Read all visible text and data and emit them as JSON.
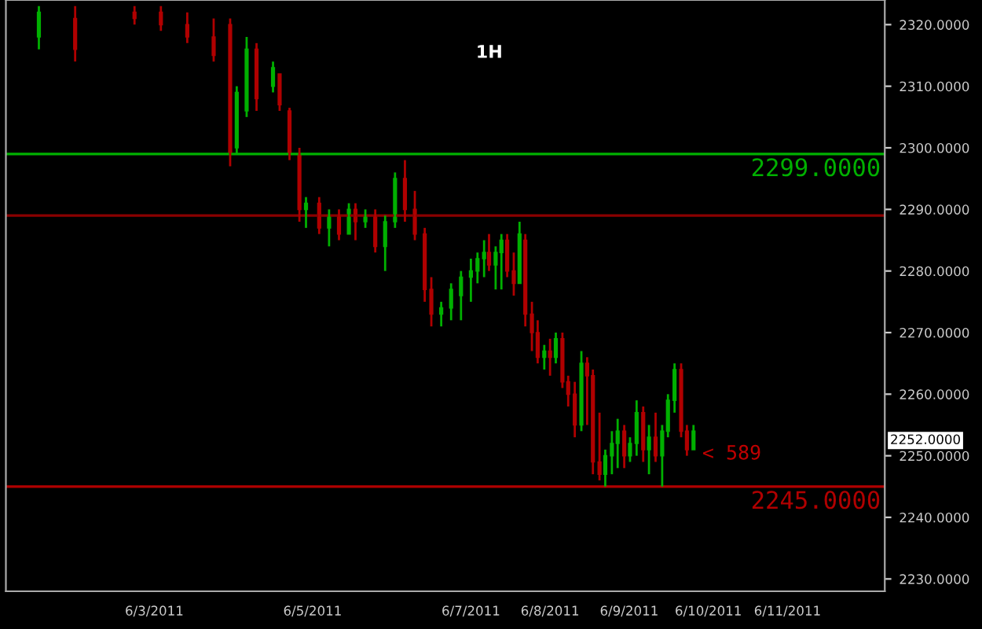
{
  "chart_data": {
    "type": "candlestick",
    "title": "1H",
    "x": [
      "2011-06-01T13:00",
      "2011-06-02T00:00",
      "2011-06-02T18:00",
      "2011-06-03T02:00",
      "2011-06-03T10:00",
      "2011-06-03T18:00",
      "2011-06-03T23:00",
      "2011-06-04T01:00",
      "2011-06-04T04:00",
      "2011-06-04T07:00",
      "2011-06-04T12:00",
      "2011-06-04T14:00",
      "2011-06-04T17:00",
      "2011-06-04T20:00",
      "2011-06-04T22:00",
      "2011-06-05T02:00",
      "2011-06-05T05:00",
      "2011-06-05T08:00",
      "2011-06-05T11:00",
      "2011-06-05T13:00",
      "2011-06-05T16:00",
      "2011-06-05T19:00",
      "2011-06-05T22:00",
      "2011-06-06T01:00",
      "2011-06-06T04:00",
      "2011-06-06T07:00",
      "2011-06-06T10:00",
      "2011-06-06T12:00",
      "2011-06-06T15:00",
      "2011-06-06T18:00",
      "2011-06-06T21:00",
      "2011-06-07T00:00",
      "2011-06-07T02:00",
      "2011-06-07T04:00",
      "2011-06-07T05:30",
      "2011-06-07T07:30",
      "2011-06-07T09:15",
      "2011-06-07T11:00",
      "2011-06-07T13:00",
      "2011-06-07T14:45",
      "2011-06-07T16:30",
      "2011-06-07T18:30",
      "2011-06-07T20:15",
      "2011-06-07T22:15",
      "2011-06-08T00:00",
      "2011-06-08T01:45",
      "2011-06-08T03:45",
      "2011-06-08T05:30",
      "2011-06-08T07:30",
      "2011-06-08T09:30",
      "2011-06-08T11:15",
      "2011-06-08T13:00",
      "2011-06-08T15:00",
      "2011-06-08T16:45",
      "2011-06-08T18:45",
      "2011-06-08T20:30",
      "2011-06-08T22:30",
      "2011-06-09T00:15",
      "2011-06-09T02:15",
      "2011-06-09T04:15",
      "2011-06-09T06:00",
      "2011-06-09T08:00",
      "2011-06-09T10:00",
      "2011-06-09T11:45",
      "2011-06-09T13:45",
      "2011-06-09T15:45",
      "2011-06-09T17:30",
      "2011-06-09T19:30"
    ],
    "ohlc": [
      [
        2318,
        2323,
        2316,
        2322
      ],
      [
        2321,
        2323,
        2314,
        2316
      ],
      [
        2322,
        2323,
        2320,
        2321
      ],
      [
        2322,
        2323,
        2319,
        2320
      ],
      [
        2320,
        2322,
        2317,
        2318
      ],
      [
        2318,
        2321,
        2314,
        2315
      ],
      [
        2320,
        2321,
        2297,
        2299
      ],
      [
        2300,
        2310,
        2299,
        2309
      ],
      [
        2306,
        2318,
        2305,
        2316
      ],
      [
        2316,
        2317,
        2306,
        2308
      ],
      [
        2310,
        2314,
        2309,
        2313
      ],
      [
        2312,
        2312,
        2306,
        2307
      ],
      [
        2306,
        2306.5,
        2298,
        2299
      ],
      [
        2299,
        2300,
        2288,
        2290
      ],
      [
        2290,
        2292,
        2287,
        2291
      ],
      [
        2291,
        2292,
        2286,
        2287
      ],
      [
        2287,
        2290,
        2284,
        2289
      ],
      [
        2289,
        2290,
        2285,
        2286
      ],
      [
        2286,
        2291,
        2286,
        2290
      ],
      [
        2290,
        2291,
        2285,
        2288
      ],
      [
        2288,
        2290,
        2287,
        2289
      ],
      [
        2289,
        2290,
        2283,
        2284
      ],
      [
        2284,
        2289,
        2280,
        2288
      ],
      [
        2288,
        2296,
        2287,
        2295
      ],
      [
        2295,
        2298,
        2288,
        2290
      ],
      [
        2290,
        2293,
        2285,
        2286
      ],
      [
        2286,
        2287,
        2275,
        2277
      ],
      [
        2277,
        2279,
        2271,
        2273
      ],
      [
        2273,
        2275,
        2271,
        2274
      ],
      [
        2274,
        2278,
        2272,
        2277
      ],
      [
        2276,
        2280,
        2272,
        2279
      ],
      [
        2279,
        2282,
        2275,
        2280
      ],
      [
        2280,
        2283,
        2278,
        2282
      ],
      [
        2282,
        2285,
        2279,
        2283
      ],
      [
        2283,
        2286,
        2280,
        2281
      ],
      [
        2281,
        2284,
        2277,
        2283
      ],
      [
        2283,
        2286,
        2277,
        2285
      ],
      [
        2285,
        2286,
        2279,
        2280
      ],
      [
        2280,
        2283,
        2276,
        2278
      ],
      [
        2278,
        2288,
        2278,
        2286
      ],
      [
        2285,
        2286,
        2271,
        2273
      ],
      [
        2273,
        2275,
        2267,
        2270
      ],
      [
        2270,
        2272,
        2265,
        2266
      ],
      [
        2266,
        2268,
        2264,
        2267
      ],
      [
        2267,
        2269,
        2263,
        2266
      ],
      [
        2266,
        2270,
        2265,
        2269
      ],
      [
        2269,
        2270,
        2261,
        2262
      ],
      [
        2262,
        2263,
        2258,
        2260
      ],
      [
        2260,
        2262,
        2253,
        2255
      ],
      [
        2255,
        2267,
        2254,
        2265
      ],
      [
        2265,
        2266,
        2255,
        2263
      ],
      [
        2263,
        2264,
        2247,
        2249
      ],
      [
        2249,
        2257,
        2246,
        2247
      ],
      [
        2247,
        2251,
        2245,
        2250
      ],
      [
        2250,
        2254,
        2247,
        2252
      ],
      [
        2252,
        2256,
        2248,
        2254
      ],
      [
        2254,
        2255,
        2248,
        2250
      ],
      [
        2250,
        2253,
        2249,
        2252
      ],
      [
        2252,
        2259,
        2250,
        2257
      ],
      [
        2257,
        2258,
        2249,
        2251
      ],
      [
        2251,
        2255,
        2247,
        2253
      ],
      [
        2253,
        2257,
        2249,
        2250
      ],
      [
        2250,
        2255,
        2245,
        2254
      ],
      [
        2254,
        2260,
        2253,
        2259
      ],
      [
        2259,
        2265,
        2257,
        2264
      ],
      [
        2264,
        2265,
        2253,
        2254
      ],
      [
        2254,
        2255,
        2250,
        2251
      ],
      [
        2251,
        2255,
        2251,
        2254
      ]
    ],
    "colors": [
      "#00b000",
      "#b00000",
      "#b00000",
      "#b00000",
      "#b00000",
      "#b00000",
      "#b00000",
      "#00b000",
      "#00b000",
      "#b00000",
      "#00b000",
      "#b00000",
      "#b00000",
      "#b00000",
      "#00b000",
      "#b00000",
      "#00b000",
      "#b00000",
      "#00b000",
      "#b00000",
      "#00b000",
      "#b00000",
      "#00b000",
      "#00b000",
      "#b00000",
      "#b00000",
      "#b00000",
      "#b00000",
      "#00b000",
      "#00b000",
      "#00b000",
      "#00b000",
      "#00b000",
      "#00b000",
      "#b00000",
      "#00b000",
      "#00b000",
      "#b00000",
      "#b00000",
      "#00b000",
      "#b00000",
      "#b00000",
      "#b00000",
      "#00b000",
      "#b00000",
      "#00b000",
      "#b00000",
      "#b00000",
      "#b00000",
      "#00b000",
      "#b00000",
      "#b00000",
      "#b00000",
      "#00b000",
      "#00b000",
      "#00b000",
      "#b00000",
      "#00b000",
      "#00b000",
      "#b00000",
      "#00b000",
      "#b00000",
      "#00b000",
      "#00b000",
      "#00b000",
      "#b00000",
      "#b00000",
      "#00b000"
    ],
    "xlim": [
      "2011-06-01T03:00",
      "2011-06-12T05:30"
    ],
    "xticks": [
      {
        "value": "2011-06-03",
        "label": "6/3/2011"
      },
      {
        "value": "2011-06-05",
        "label": "6/5/2011"
      },
      {
        "value": "2011-06-07",
        "label": "6/7/2011"
      },
      {
        "value": "2011-06-08",
        "label": "6/8/2011"
      },
      {
        "value": "2011-06-09",
        "label": "6/9/2011"
      },
      {
        "value": "2011-06-10",
        "label": "6/10/2011"
      },
      {
        "value": "2011-06-11",
        "label": "6/11/2011"
      }
    ],
    "ylim": [
      2228,
      2324
    ],
    "yticks": [
      {
        "value": 2230,
        "label": "2230.0000"
      },
      {
        "value": 2240,
        "label": "2240.0000"
      },
      {
        "value": 2250,
        "label": "2250.0000"
      },
      {
        "value": 2260,
        "label": "2260.0000"
      },
      {
        "value": 2270,
        "label": "2270.0000"
      },
      {
        "value": 2280,
        "label": "2280.0000"
      },
      {
        "value": 2290,
        "label": "2290.0000"
      },
      {
        "value": 2300,
        "label": "2300.0000"
      },
      {
        "value": 2310,
        "label": "2310.0000"
      },
      {
        "value": 2320,
        "label": "2320.0000"
      }
    ],
    "ref_lines": [
      {
        "axis": "y",
        "value": 2299,
        "label": "2299.0000",
        "color": "#00b000"
      },
      {
        "axis": "y",
        "value": 2289,
        "label": null,
        "color": "#8b0000"
      },
      {
        "axis": "y",
        "value": 2245,
        "label": "2245.0000",
        "color": "#b00000"
      }
    ],
    "annotations": [
      {
        "text": "< 589",
        "x": "2011-06-09T19:30",
        "y": 2251
      },
      "2252.0000"
    ],
    "grid": false
  }
}
